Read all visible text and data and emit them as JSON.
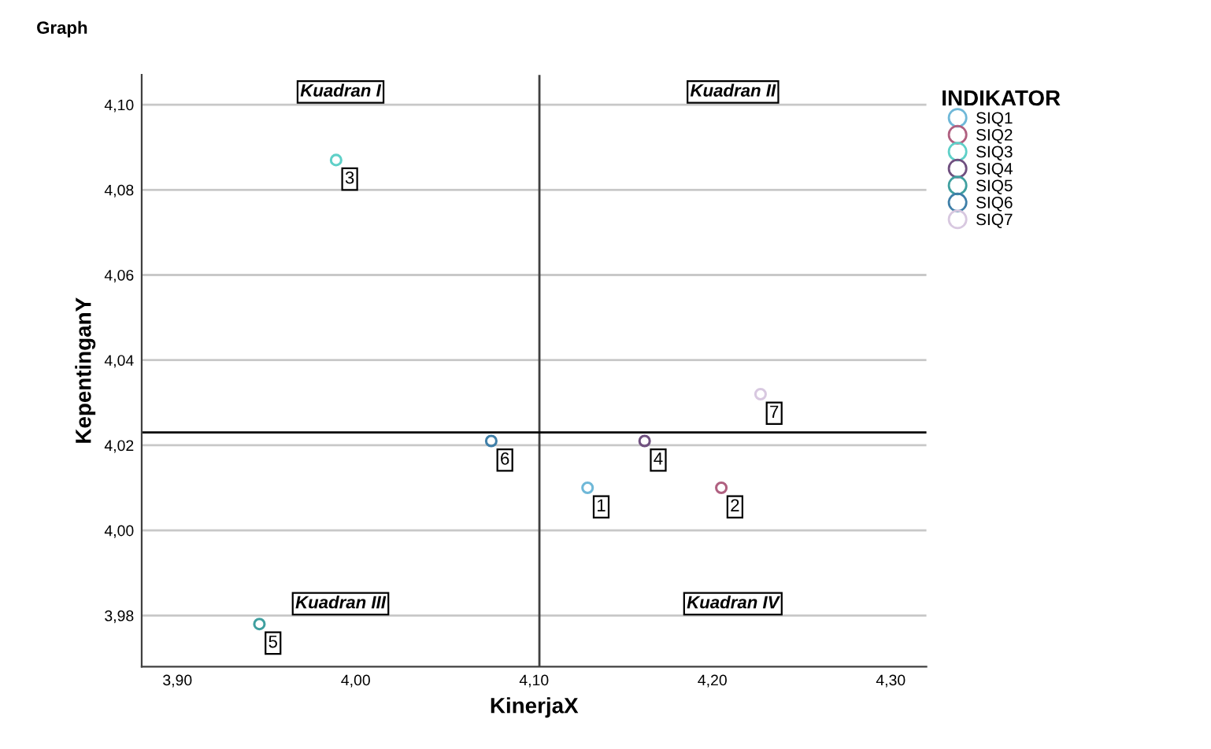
{
  "chart_data": {
    "type": "scatter",
    "title": "Graph",
    "xlabel": "KinerjaX",
    "ylabel": "KepentinganY",
    "legend_title": "INDIKATOR",
    "legend": "top right",
    "marker": "circle",
    "grid": "y",
    "xlim": [
      3.88,
      4.32
    ],
    "ylim": [
      3.968,
      4.107
    ],
    "xticks": [
      {
        "value": 3.9,
        "label": "3,90"
      },
      {
        "value": 4.0,
        "label": "4,00"
      },
      {
        "value": 4.1,
        "label": "4,10"
      },
      {
        "value": 4.2,
        "label": "4,20"
      },
      {
        "value": 4.3,
        "label": "4,30"
      }
    ],
    "yticks": [
      {
        "value": 3.98,
        "label": "3,98"
      },
      {
        "value": 4.0,
        "label": "4,00"
      },
      {
        "value": 4.02,
        "label": "4,02"
      },
      {
        "value": 4.04,
        "label": "4,04"
      },
      {
        "value": 4.06,
        "label": "4,06"
      },
      {
        "value": 4.08,
        "label": "4,08"
      },
      {
        "value": 4.1,
        "label": "4,10"
      }
    ],
    "series": [
      {
        "name": "SIQ1",
        "color": "#6fb8d8",
        "x": [
          4.13
        ],
        "values": [
          4.01
        ]
      },
      {
        "name": "SIQ2",
        "color": "#b06080",
        "x": [
          4.205
        ],
        "values": [
          4.01
        ]
      },
      {
        "name": "SIQ3",
        "color": "#5fd0c8",
        "x": [
          3.989
        ],
        "values": [
          4.087
        ]
      },
      {
        "name": "SIQ4",
        "color": "#705080",
        "x": [
          4.162
        ],
        "values": [
          4.021
        ]
      },
      {
        "name": "SIQ5",
        "color": "#40a0a0",
        "x": [
          3.946
        ],
        "values": [
          3.978
        ]
      },
      {
        "name": "SIQ6",
        "color": "#3f7fa8",
        "x": [
          4.076
        ],
        "values": [
          4.021
        ]
      },
      {
        "name": "SIQ7",
        "color": "#d8c8e0",
        "x": [
          4.227
        ],
        "values": [
          4.032
        ]
      }
    ],
    "ref_lines": [
      {
        "axis": "x",
        "value": 4.103,
        "color": "#404040"
      },
      {
        "axis": "y",
        "value": 4.023,
        "color": "#000000"
      }
    ],
    "annotations": [
      "Kuadran I",
      "Kuadran II",
      "Kuadran III",
      "Kuadran IV",
      {
        "text": "1",
        "x": 4.13,
        "y": 4.01
      },
      {
        "text": "2",
        "x": 4.205,
        "y": 4.01
      },
      {
        "text": "3",
        "x": 3.989,
        "y": 4.087
      },
      {
        "text": "4",
        "x": 4.162,
        "y": 4.021
      },
      {
        "text": "5",
        "x": 3.946,
        "y": 3.978
      },
      {
        "text": "6",
        "x": 4.076,
        "y": 4.021
      },
      {
        "text": "7",
        "x": 4.227,
        "y": 4.032
      }
    ]
  }
}
